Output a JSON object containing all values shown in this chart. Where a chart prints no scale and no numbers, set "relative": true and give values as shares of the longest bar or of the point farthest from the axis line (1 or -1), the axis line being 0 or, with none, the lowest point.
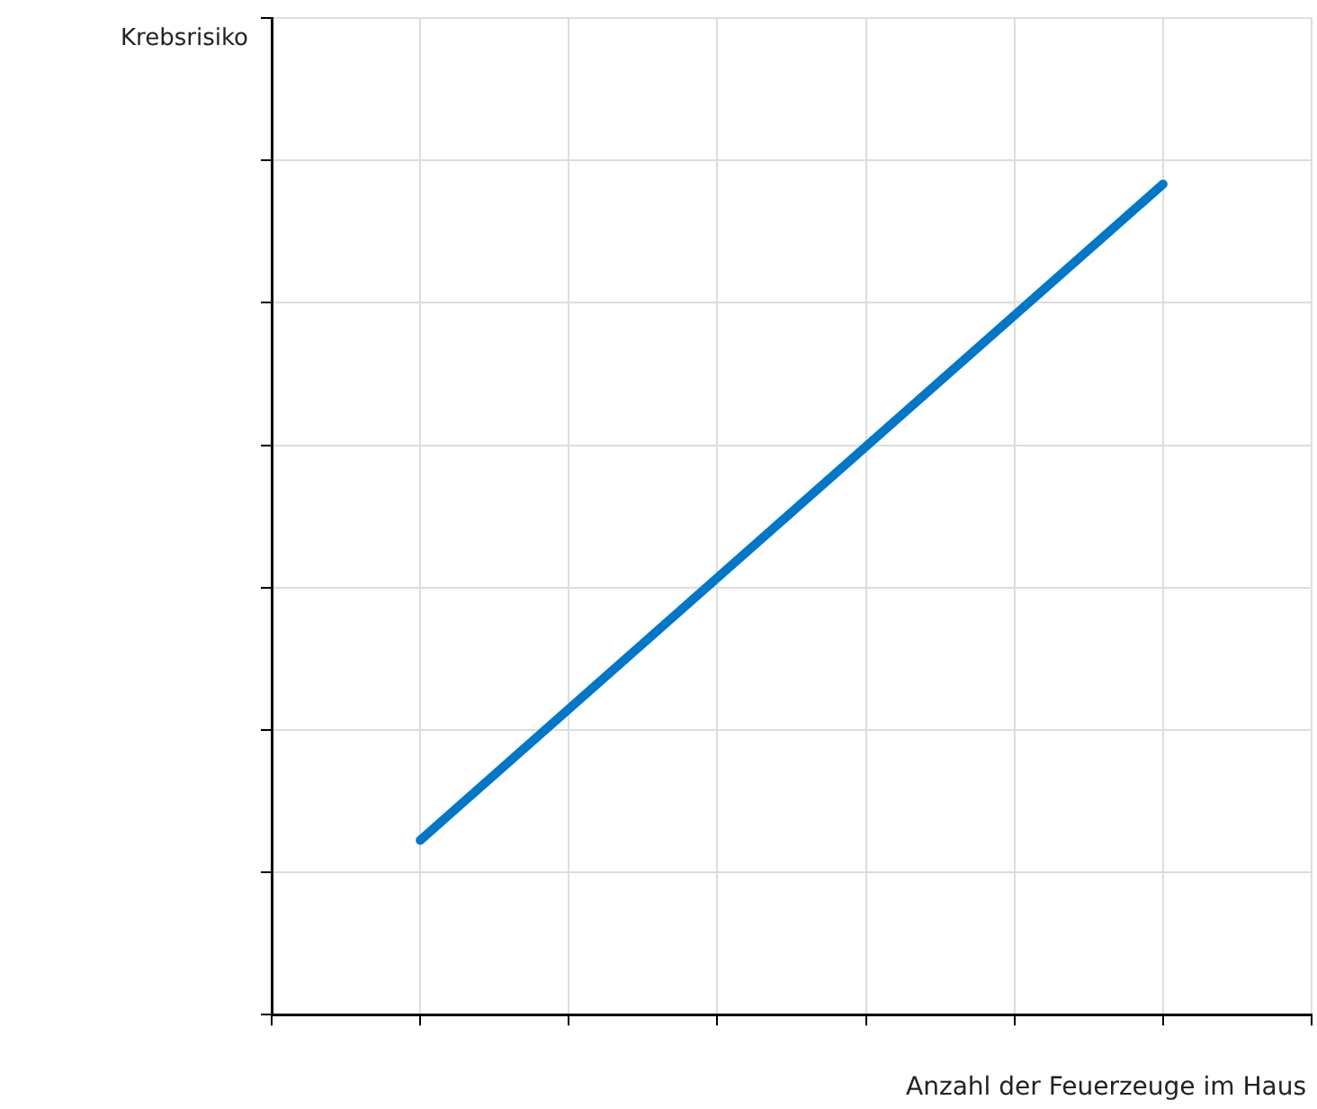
{
  "chart_data": {
    "type": "line",
    "xlabel": "Anzahl der Feuerzeuge im Haus",
    "annotations": [
      "Krebsrisiko"
    ],
    "relative": true,
    "grid": true,
    "categories": [
      null,
      null,
      null,
      null,
      null,
      null,
      null,
      null
    ],
    "series": [
      {
        "color": "#0077c8",
        "values": [
          null,
          0.21,
          null,
          null,
          null,
          null,
          1,
          null
        ]
      }
    ]
  }
}
